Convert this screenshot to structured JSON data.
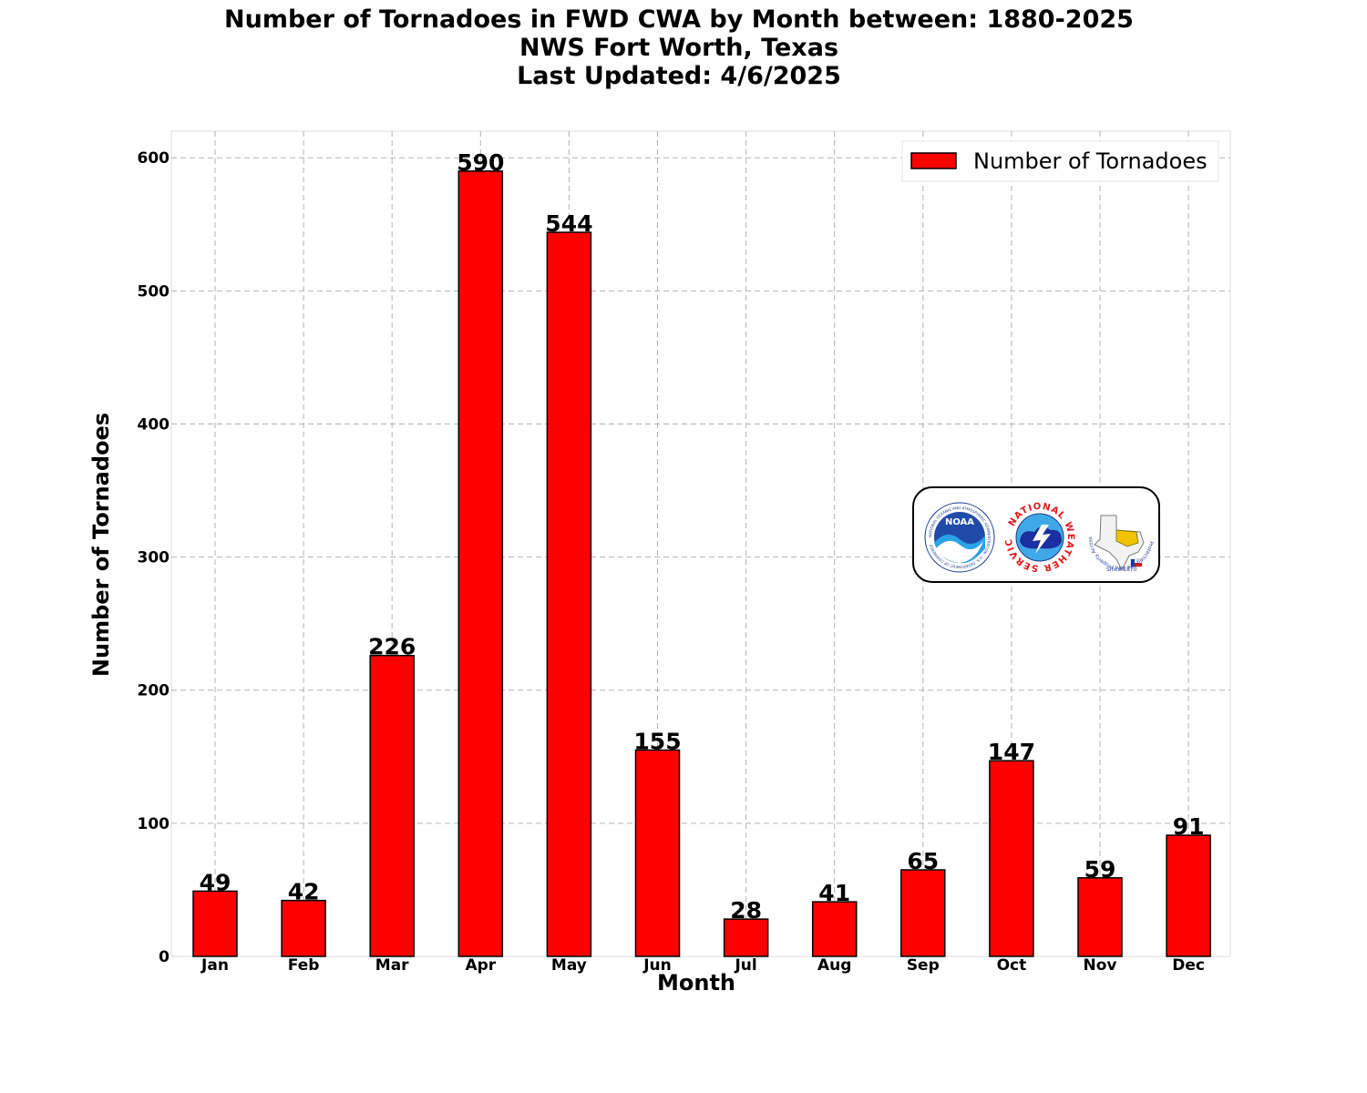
{
  "chart_data": {
    "type": "bar",
    "title_lines": [
      "Number of Tornadoes in FWD CWA by Month between: 1880-2025",
      "NWS Fort Worth, Texas",
      "Last Updated: 4/6/2025"
    ],
    "xlabel": "Month",
    "ylabel": "Number of Tornadoes",
    "categories": [
      "Jan",
      "Feb",
      "Mar",
      "Apr",
      "May",
      "Jun",
      "Jul",
      "Aug",
      "Sep",
      "Oct",
      "Nov",
      "Dec"
    ],
    "series": [
      {
        "name": "Number of Tornadoes",
        "color": "#ff0000",
        "values": [
          49,
          42,
          226,
          590,
          544,
          155,
          28,
          41,
          65,
          147,
          59,
          91
        ]
      }
    ],
    "ylim": [
      0,
      620
    ],
    "yticks": [
      0,
      100,
      200,
      300,
      400,
      500,
      600
    ],
    "grid": true,
    "legend_position": "top-right",
    "data_labels": true
  },
  "logos": {
    "noaa": {
      "text": "NOAA",
      "ring_text": "NATIONAL OCEANIC AND ATMOSPHERIC ADMINISTRATION · U.S. DEPARTMENT OF COMMERCE"
    },
    "nws": {
      "ring_text": "NATIONAL WEATHER SERVICE"
    },
    "wfo": {
      "ring_text": "Protecting Life And Property Across North Texas",
      "since": "Since 1870"
    }
  }
}
